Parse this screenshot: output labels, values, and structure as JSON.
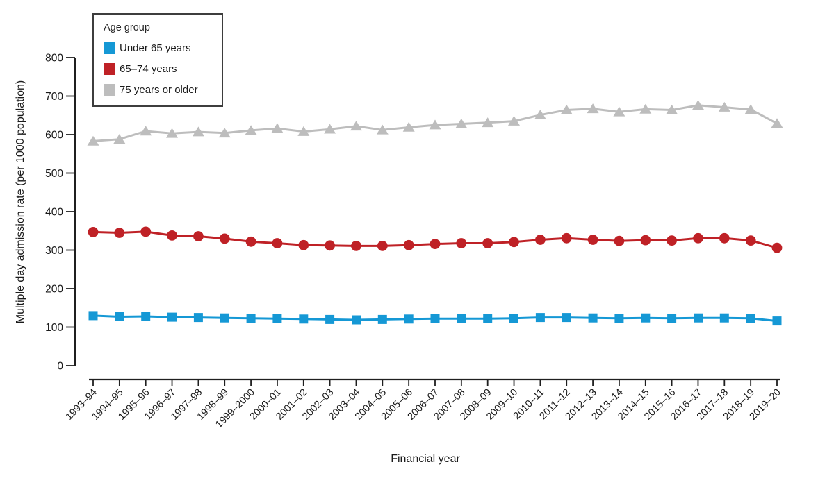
{
  "chart_data": {
    "type": "line",
    "title": "",
    "xlabel": "Financial year",
    "ylabel": "Multiple day admission rate (per 1000 population)",
    "ylim": [
      0,
      800
    ],
    "yticks": [
      0,
      100,
      200,
      300,
      400,
      500,
      600,
      700,
      800
    ],
    "grid": false,
    "legend": {
      "title": "Age group",
      "position": "top-left-inside"
    },
    "axis_color": "#1f1f1f",
    "categories": [
      "1993–94",
      "1994–95",
      "1995–96",
      "1996–97",
      "1997–98",
      "1998–99",
      "1999–2000",
      "2000–01",
      "2001–02",
      "2002–03",
      "2003–04",
      "2004–05",
      "2005–06",
      "2006–07",
      "2007–08",
      "2008–09",
      "2009–10",
      "2010–11",
      "2011–12",
      "2012–13",
      "2013–14",
      "2014–15",
      "2015–16",
      "2016–17",
      "2017–18",
      "2018–19",
      "2019–20"
    ],
    "series": [
      {
        "name": "Under 65 years",
        "color": "#1598d5",
        "marker": "square",
        "values": [
          130,
          127,
          128,
          126,
          125,
          124,
          123,
          122,
          121,
          120,
          119,
          120,
          121,
          122,
          122,
          122,
          123,
          125,
          125,
          124,
          123,
          124,
          123,
          124,
          124,
          123,
          116
        ]
      },
      {
        "name": "65–74 years",
        "color": "#bf2126",
        "marker": "circle",
        "values": [
          347,
          345,
          348,
          338,
          336,
          330,
          322,
          318,
          313,
          312,
          311,
          311,
          313,
          316,
          318,
          318,
          321,
          327,
          331,
          327,
          324,
          326,
          325,
          331,
          331,
          325,
          306
        ]
      },
      {
        "name": "75 years or older",
        "color": "#bdbdbd",
        "marker": "triangle",
        "values": [
          583,
          588,
          609,
          603,
          607,
          604,
          611,
          616,
          608,
          614,
          622,
          612,
          619,
          625,
          628,
          631,
          635,
          651,
          664,
          667,
          659,
          666,
          664,
          676,
          671,
          665,
          629
        ]
      }
    ]
  }
}
